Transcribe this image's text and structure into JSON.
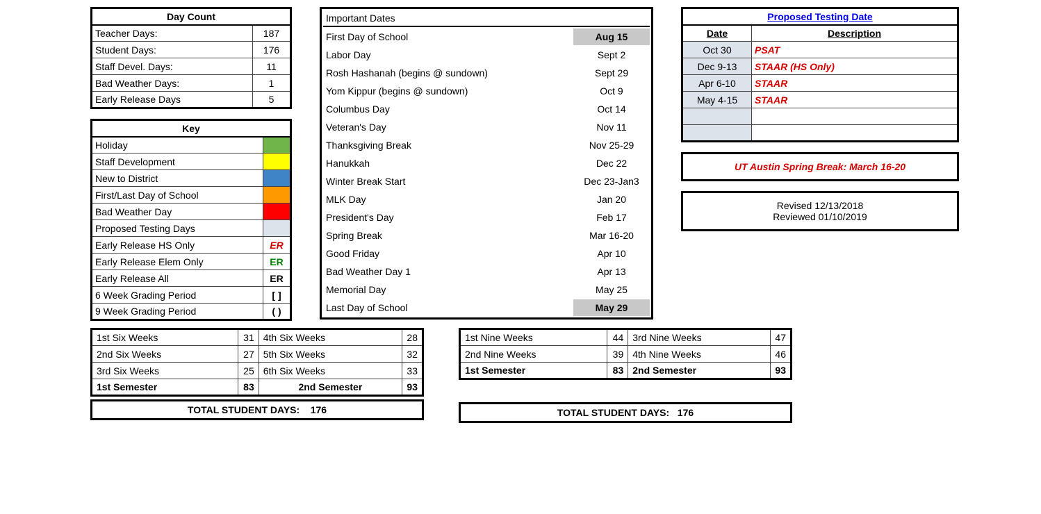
{
  "day_count": {
    "title": "Day Count",
    "rows": [
      {
        "label": "Teacher Days:",
        "value": "187"
      },
      {
        "label": "Student Days:",
        "value": "176"
      },
      {
        "label": "Staff Devel. Days:",
        "value": "11"
      },
      {
        "label": "Bad Weather Days:",
        "value": "1"
      },
      {
        "label": "Early Release Days",
        "value": "5"
      }
    ]
  },
  "key": {
    "title": "Key",
    "rows": [
      {
        "label": "Holiday",
        "type": "swatch",
        "color": "#70b54a"
      },
      {
        "label": "Staff Development",
        "type": "swatch",
        "color": "#ffff00"
      },
      {
        "label": "New to District",
        "type": "swatch",
        "color": "#3d85c6"
      },
      {
        "label": "First/Last Day of School",
        "type": "swatch",
        "color": "#ff9900"
      },
      {
        "label": "Bad Weather Day",
        "type": "swatch",
        "color": "#ff0000"
      },
      {
        "label": "Proposed Testing Days",
        "type": "swatch",
        "color": "#dde3ea"
      },
      {
        "label": "Early Release HS Only",
        "type": "code",
        "code": "ER",
        "style": "redtext"
      },
      {
        "label": "Early Release Elem Only",
        "type": "code",
        "code": "ER",
        "style": "greentext"
      },
      {
        "label": "Early Release All",
        "type": "code",
        "code": "ER",
        "style": "blacktext"
      },
      {
        "label": "6 Week Grading Period",
        "type": "code",
        "code": "[ ]",
        "style": "blacktext"
      },
      {
        "label": "9 Week Grading Period",
        "type": "code",
        "code": "( )",
        "style": "blacktext"
      }
    ]
  },
  "important_dates": {
    "title": "Important Dates",
    "rows": [
      {
        "label": "First Day of School",
        "date": "Aug 15",
        "hl": true
      },
      {
        "label": "Labor Day",
        "date": "Sept 2"
      },
      {
        "label": "Rosh Hashanah (begins @ sundown)",
        "date": "Sept 29"
      },
      {
        "label": "Yom Kippur (begins @ sundown)",
        "date": "Oct 9"
      },
      {
        "label": "Columbus Day",
        "date": "Oct 14"
      },
      {
        "label": "Veteran's Day",
        "date": "Nov 11"
      },
      {
        "label": "Thanksgiving Break",
        "date": "Nov 25-29"
      },
      {
        "label": "Hanukkah",
        "date": "Dec 22"
      },
      {
        "label": "Winter Break Start",
        "date": "Dec 23-Jan3"
      },
      {
        "label": "MLK Day",
        "date": "Jan 20"
      },
      {
        "label": "President's Day",
        "date": "Feb 17"
      },
      {
        "label": "Spring Break",
        "date": "Mar 16-20"
      },
      {
        "label": "Good Friday",
        "date": "Apr 10"
      },
      {
        "label": "Bad Weather Day 1",
        "date": "Apr 13"
      },
      {
        "label": "Memorial Day",
        "date": "May 25"
      },
      {
        "label": "Last Day of School",
        "date": "May 29",
        "hl": true
      }
    ]
  },
  "testing": {
    "title": "Proposed Testing Date",
    "h1": "Date",
    "h2": "Description",
    "rows": [
      {
        "date": "Oct 30",
        "desc": "PSAT"
      },
      {
        "date": "Dec 9-13",
        "desc": "STAAR (HS Only)"
      },
      {
        "date": "Apr 6-10",
        "desc": "STAAR"
      },
      {
        "date": "May 4-15",
        "desc": "STAAR"
      },
      {
        "date": "",
        "desc": ""
      },
      {
        "date": "",
        "desc": ""
      }
    ],
    "row_bg": "#dde3ea"
  },
  "ut_note": "UT Austin Spring Break:  March 16-20",
  "revised": {
    "line1": "Revised 12/13/2018",
    "line2": "Reviewed 01/10/2019"
  },
  "six_weeks": {
    "left": [
      {
        "label": "1st Six Weeks",
        "value": "31"
      },
      {
        "label": "2nd Six Weeks",
        "value": "27"
      },
      {
        "label": "3rd Six Weeks",
        "value": "25"
      }
    ],
    "right": [
      {
        "label": "4th Six Weeks",
        "value": "28"
      },
      {
        "label": "5th Six Weeks",
        "value": "32"
      },
      {
        "label": "6th Six Weeks",
        "value": "33"
      }
    ],
    "sem1_label": "1st Semester",
    "sem1_val": "83",
    "sem2_label": "2nd Semester",
    "sem2_val": "93",
    "total_label": "TOTAL STUDENT DAYS:",
    "total_val": "176"
  },
  "nine_weeks": {
    "left": [
      {
        "label": "1st Nine Weeks",
        "value": "44"
      },
      {
        "label": "2nd Nine Weeks",
        "value": "39"
      }
    ],
    "right": [
      {
        "label": "3rd Nine Weeks",
        "value": "47"
      },
      {
        "label": "4th Nine Weeks",
        "value": "46"
      }
    ],
    "sem1_label": "1st Semester",
    "sem1_val": "83",
    "sem2_label": "2nd Semester",
    "sem2_val": "93",
    "total_label": "TOTAL STUDENT DAYS:",
    "total_val": "176"
  }
}
